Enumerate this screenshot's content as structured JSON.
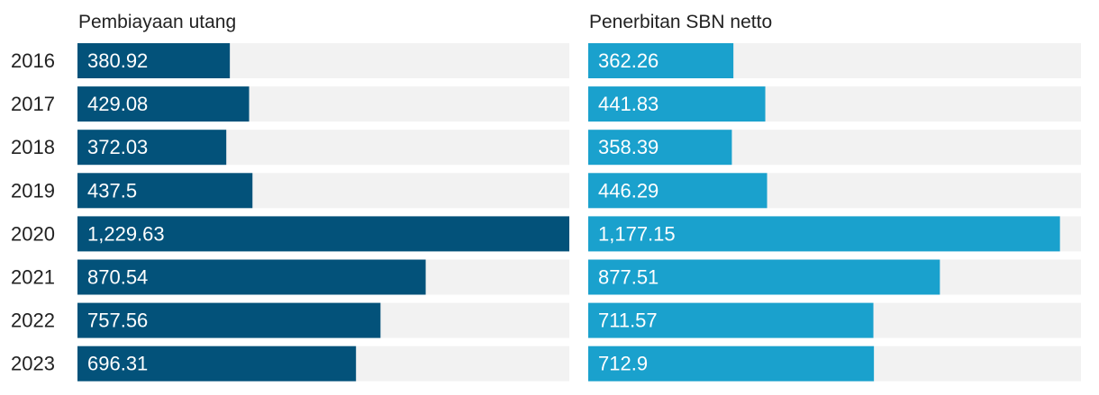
{
  "chart_data": {
    "type": "bar",
    "orientation": "horizontal",
    "categories": [
      "2016",
      "2017",
      "2018",
      "2019",
      "2020",
      "2021",
      "2022",
      "2023"
    ],
    "series": [
      {
        "name": "Pembiayaan utang",
        "color": "#03527a",
        "values": [
          380.92,
          429.08,
          372.03,
          437.5,
          1229.63,
          870.54,
          757.56,
          696.31
        ],
        "labels": [
          "380.92",
          "429.08",
          "372.03",
          "437.5",
          "1,229.63",
          "870.54",
          "757.56",
          "696.31"
        ]
      },
      {
        "name": "Penerbitan SBN netto",
        "color": "#1aa1cd",
        "values": [
          362.26,
          441.83,
          358.39,
          446.29,
          1177.15,
          877.51,
          711.57,
          712.9
        ],
        "labels": [
          "362.26",
          "441.83",
          "358.39",
          "446.29",
          "1,177.15",
          "877.51",
          "711.57",
          "712.9"
        ]
      }
    ],
    "xlim": [
      0,
      1229.63
    ],
    "track_color": "#f2f2f2",
    "value_label_color": "#ffffff",
    "grid": false,
    "legend": "none"
  }
}
